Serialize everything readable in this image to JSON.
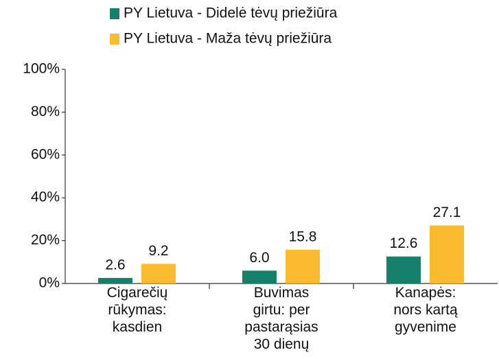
{
  "chart_data": {
    "type": "bar",
    "categories": [
      "Cigarečių\nrūkymas:\nkasdien",
      "Buvimas\ngirtu: per\npastarąsias\n30 dienų",
      "Kanapės:\nnors kartą\ngyvenime"
    ],
    "series": [
      {
        "name": "PY Lietuva - Didelė tėvų priežiūra",
        "color": "#17806a",
        "values": [
          2.6,
          6.0,
          12.6
        ],
        "value_labels": [
          "2.6",
          "6.0",
          "12.6"
        ]
      },
      {
        "name": "PY Lietuva - Maža tėvų priežiūra",
        "color": "#fbbb2e",
        "values": [
          9.2,
          15.8,
          27.1
        ],
        "value_labels": [
          "9.2",
          "15.8",
          "27.1"
        ]
      }
    ],
    "ylim": [
      0,
      100
    ],
    "yticks": [
      {
        "value": 0,
        "label": "0%"
      },
      {
        "value": 20,
        "label": "20%"
      },
      {
        "value": 40,
        "label": "40%"
      },
      {
        "value": 60,
        "label": "60%"
      },
      {
        "value": 80,
        "label": "80%"
      },
      {
        "value": 100,
        "label": "100%"
      }
    ],
    "legend": "top"
  }
}
